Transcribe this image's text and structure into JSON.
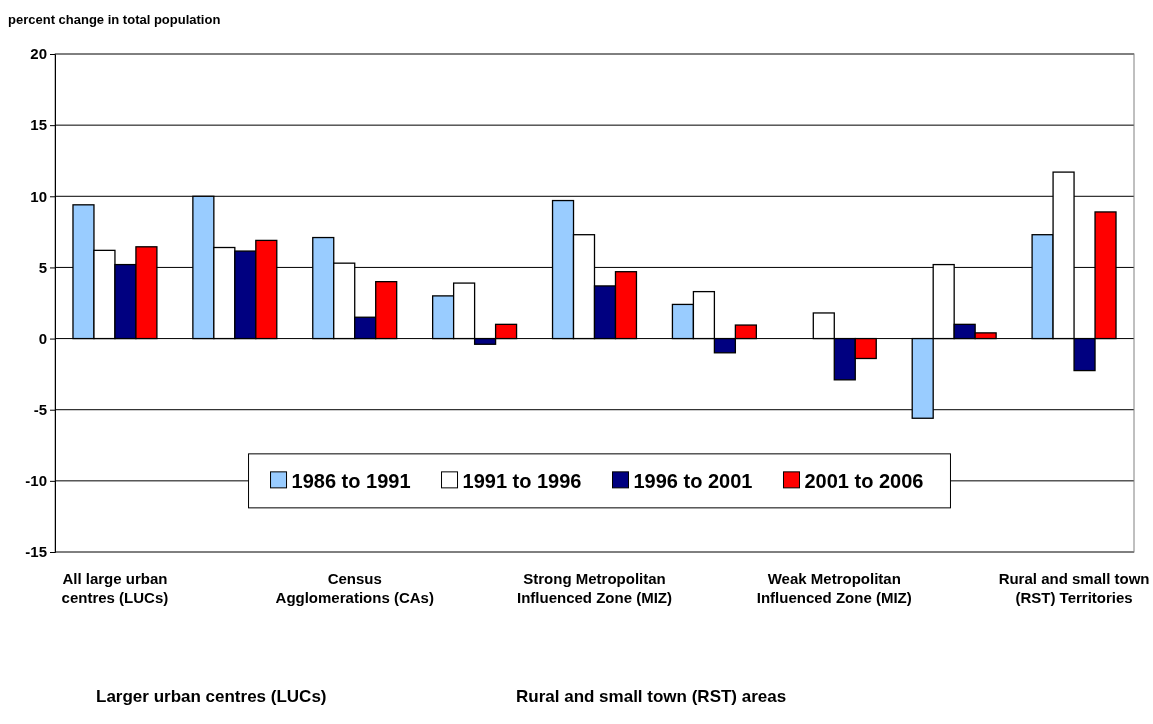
{
  "chart_data": {
    "type": "bar",
    "ylabel": "percent change in total population",
    "categories": [
      "All large urban centres (LUCs)",
      null,
      "Census Agglomerations (CAs)",
      null,
      "Strong Metropolitan Influenced Zone (MIZ)",
      null,
      "Weak Metropolitan Influenced Zone (MIZ)",
      null,
      "Rural and small town (RST) Territories"
    ],
    "series": [
      {
        "name": "1986 to 1991",
        "color": "#99ccff",
        "values": [
          9.4,
          10.0,
          7.1,
          3.0,
          9.7,
          2.4,
          0,
          -5.6,
          7.3
        ]
      },
      {
        "name": "1991 to 1996",
        "color": "#ffffff",
        "values": [
          6.2,
          6.4,
          5.3,
          3.9,
          7.3,
          3.3,
          1.8,
          5.2,
          11.7
        ]
      },
      {
        "name": "1996 to 2001",
        "color": "#000080",
        "values": [
          5.2,
          6.15,
          1.5,
          -0.4,
          3.7,
          -1.0,
          -2.9,
          1.0,
          -2.25
        ]
      },
      {
        "name": "2001 to 2006",
        "color": "#ff0000",
        "values": [
          6.45,
          6.9,
          4.0,
          1.0,
          4.7,
          0.95,
          -1.4,
          0.4,
          8.9
        ]
      }
    ],
    "ylim": [
      -15,
      20
    ],
    "yticks": [
      -15,
      -10,
      -5,
      0,
      5,
      10,
      15,
      20
    ],
    "grid": "y",
    "legend": "bottom",
    "annotations": [
      "Larger urban centres (LUCs)",
      "Rural and small town (RST) areas"
    ]
  }
}
